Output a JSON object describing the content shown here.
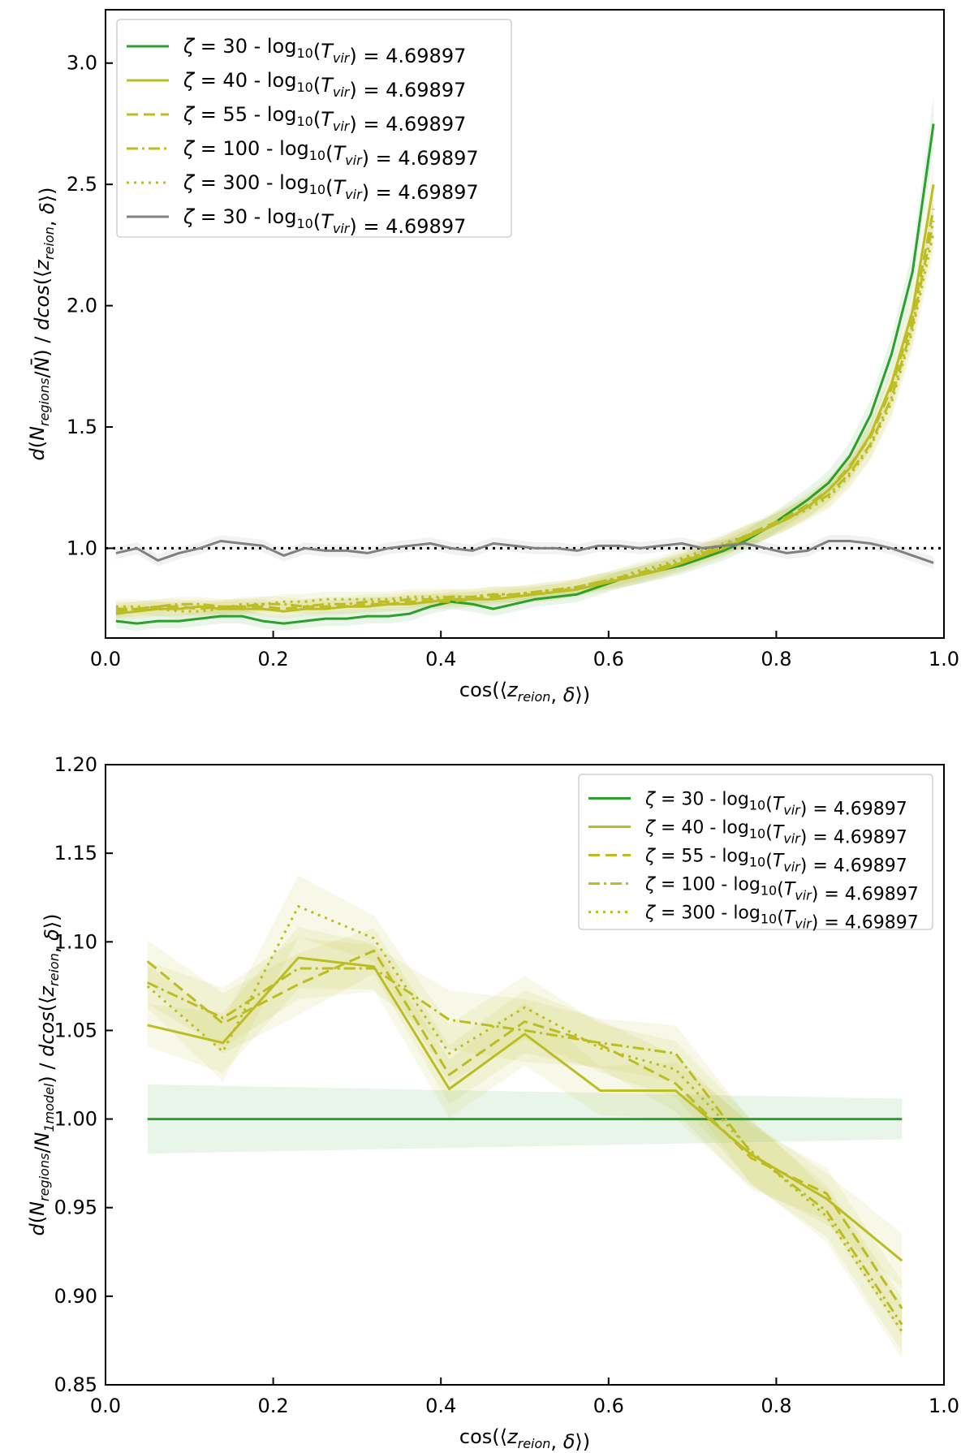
{
  "chart_data": [
    {
      "type": "line",
      "xlabel": "cos(⟨z_reion, δ⟩)",
      "ylabel": "d(N_regions/N̄) / dcos(⟨z_reion, δ⟩)",
      "xlim": [
        0.0,
        1.0
      ],
      "ylim": [
        0.63,
        3.22
      ],
      "xticks": [
        "0.0",
        "0.2",
        "0.4",
        "0.6",
        "0.8",
        "1.0"
      ],
      "yticks": [
        "1.0",
        "1.5",
        "2.0",
        "2.5",
        "3.0"
      ],
      "legend_position": "upper-left",
      "reference_line": {
        "y": 1.0,
        "style": "dotted",
        "color": "#000000"
      },
      "x": [
        0.0125,
        0.0375,
        0.0625,
        0.0875,
        0.1125,
        0.1375,
        0.1625,
        0.1875,
        0.2125,
        0.2375,
        0.2625,
        0.2875,
        0.3125,
        0.3375,
        0.3625,
        0.3875,
        0.4125,
        0.4375,
        0.4625,
        0.4875,
        0.5125,
        0.5375,
        0.5625,
        0.5875,
        0.6125,
        0.6375,
        0.6625,
        0.6875,
        0.7125,
        0.7375,
        0.7625,
        0.7875,
        0.8125,
        0.8375,
        0.8625,
        0.8875,
        0.9125,
        0.9375,
        0.9625,
        0.9875
      ],
      "series": [
        {
          "name": "ζ = 30 - log10(Tvir) = 4.69897",
          "color": "#2ca02c",
          "dash": "solid",
          "values": [
            0.7,
            0.69,
            0.7,
            0.7,
            0.71,
            0.72,
            0.72,
            0.7,
            0.69,
            0.7,
            0.71,
            0.71,
            0.72,
            0.72,
            0.73,
            0.76,
            0.78,
            0.77,
            0.75,
            0.77,
            0.79,
            0.8,
            0.81,
            0.84,
            0.87,
            0.89,
            0.91,
            0.93,
            0.96,
            0.99,
            1.03,
            1.08,
            1.14,
            1.2,
            1.27,
            1.38,
            1.55,
            1.8,
            2.14,
            2.75
          ]
        },
        {
          "name": "ζ = 40 - log10(Tvir) = 4.69897",
          "color": "#bcbd22",
          "dash": "solid",
          "values": [
            0.73,
            0.74,
            0.75,
            0.75,
            0.76,
            0.75,
            0.75,
            0.75,
            0.74,
            0.75,
            0.75,
            0.76,
            0.76,
            0.77,
            0.77,
            0.78,
            0.79,
            0.79,
            0.79,
            0.8,
            0.81,
            0.82,
            0.83,
            0.85,
            0.87,
            0.89,
            0.91,
            0.94,
            0.97,
            1.0,
            1.04,
            1.08,
            1.12,
            1.17,
            1.24,
            1.33,
            1.47,
            1.68,
            1.98,
            2.5
          ]
        },
        {
          "name": "ζ = 55 - log10(Tvir) = 4.69897",
          "color": "#bcbd22",
          "dash": "dashed",
          "values": [
            0.74,
            0.75,
            0.76,
            0.76,
            0.75,
            0.76,
            0.76,
            0.76,
            0.75,
            0.76,
            0.76,
            0.76,
            0.77,
            0.77,
            0.78,
            0.78,
            0.78,
            0.79,
            0.8,
            0.81,
            0.81,
            0.82,
            0.84,
            0.86,
            0.87,
            0.89,
            0.92,
            0.94,
            0.98,
            1.01,
            1.05,
            1.09,
            1.13,
            1.18,
            1.24,
            1.34,
            1.46,
            1.66,
            1.95,
            2.4
          ]
        },
        {
          "name": "ζ = 100 - log10(Tvir) = 4.69897",
          "color": "#bcbd22",
          "dash": "dashdot",
          "values": [
            0.75,
            0.75,
            0.76,
            0.77,
            0.77,
            0.76,
            0.76,
            0.77,
            0.77,
            0.76,
            0.77,
            0.77,
            0.78,
            0.78,
            0.79,
            0.79,
            0.8,
            0.8,
            0.81,
            0.81,
            0.82,
            0.83,
            0.84,
            0.86,
            0.88,
            0.9,
            0.92,
            0.95,
            0.98,
            1.01,
            1.05,
            1.08,
            1.12,
            1.17,
            1.22,
            1.31,
            1.43,
            1.62,
            1.92,
            2.35
          ]
        },
        {
          "name": "ζ = 300 - log10(Tvir) = 4.69897",
          "color": "#bcbd22",
          "dash": "dotted",
          "values": [
            0.76,
            0.76,
            0.75,
            0.74,
            0.74,
            0.75,
            0.77,
            0.77,
            0.78,
            0.78,
            0.79,
            0.79,
            0.79,
            0.79,
            0.8,
            0.8,
            0.8,
            0.8,
            0.81,
            0.81,
            0.82,
            0.83,
            0.84,
            0.86,
            0.88,
            0.91,
            0.93,
            0.96,
            0.99,
            1.02,
            1.05,
            1.08,
            1.12,
            1.16,
            1.21,
            1.3,
            1.42,
            1.6,
            1.9,
            2.3
          ]
        },
        {
          "name": "ζ = 30 - log10(Tvir) = 4.69897",
          "color": "#808080",
          "dash": "solid",
          "values": [
            0.98,
            1.0,
            0.95,
            0.98,
            1.0,
            1.03,
            1.02,
            1.01,
            0.97,
            1.0,
            0.99,
            0.99,
            0.98,
            1.0,
            1.01,
            1.02,
            1.0,
            0.99,
            1.02,
            1.01,
            1.0,
            1.0,
            0.99,
            1.01,
            1.01,
            1.0,
            1.01,
            1.02,
            1.0,
            1.01,
            1.02,
            1.0,
            0.98,
            0.99,
            1.03,
            1.03,
            1.02,
            1.0,
            0.97,
            0.94
          ]
        }
      ]
    },
    {
      "type": "line",
      "xlabel": "cos(⟨z_reion, δ⟩)",
      "ylabel": "d(N_regions/N_1model) / dcos(⟨z_reion, δ⟩)",
      "xlim": [
        0.0,
        1.0
      ],
      "ylim": [
        0.85,
        1.2
      ],
      "xticks": [
        "0.0",
        "0.2",
        "0.4",
        "0.6",
        "0.8",
        "1.0"
      ],
      "yticks": [
        "0.85",
        "0.90",
        "0.95",
        "1.00",
        "1.05",
        "1.10",
        "1.15",
        "1.20"
      ],
      "legend_position": "upper-right",
      "x": [
        0.05,
        0.14,
        0.23,
        0.32,
        0.41,
        0.5,
        0.59,
        0.68,
        0.77,
        0.86,
        0.95
      ],
      "series": [
        {
          "name": "ζ = 30 - log10(Tvir) = 4.69897",
          "color": "#2ca02c",
          "dash": "solid",
          "values": [
            1.0,
            1.0,
            1.0,
            1.0,
            1.0,
            1.0,
            1.0,
            1.0,
            1.0,
            1.0,
            1.0
          ]
        },
        {
          "name": "ζ = 40 - log10(Tvir) = 4.69897",
          "color": "#bcbd22",
          "dash": "solid",
          "values": [
            1.053,
            1.043,
            1.091,
            1.086,
            1.017,
            1.048,
            1.016,
            1.016,
            0.98,
            0.955,
            0.92
          ]
        },
        {
          "name": "ζ = 55 - log10(Tvir) = 4.69897",
          "color": "#bcbd22",
          "dash": "dashed",
          "values": [
            1.089,
            1.054,
            1.076,
            1.095,
            1.025,
            1.055,
            1.042,
            1.02,
            0.978,
            0.958,
            0.893
          ]
        },
        {
          "name": "ζ = 100 - log10(Tvir) = 4.69897",
          "color": "#bcbd22",
          "dash": "dashdot",
          "values": [
            1.077,
            1.057,
            1.085,
            1.085,
            1.056,
            1.05,
            1.043,
            1.037,
            0.981,
            0.948,
            0.884
          ]
        },
        {
          "name": "ζ = 300 - log10(Tvir) = 4.69897",
          "color": "#bcbd22",
          "dash": "dotted",
          "values": [
            1.075,
            1.038,
            1.12,
            1.102,
            1.037,
            1.063,
            1.04,
            1.028,
            0.982,
            0.945,
            0.88
          ]
        }
      ]
    }
  ]
}
